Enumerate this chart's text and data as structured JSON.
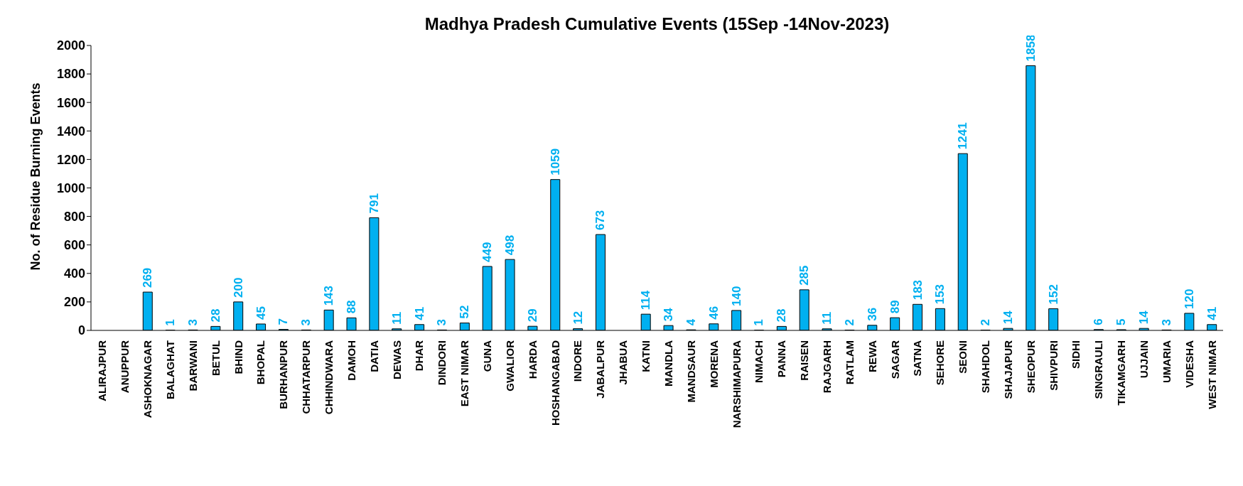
{
  "chart_data": {
    "type": "bar",
    "title": "Madhya Pradesh Cumulative Events (15Sep -14Nov-2023)",
    "ylabel": "No. of Residue Burning Events",
    "categories": [
      "ALIRAJPUR",
      "ANUPPUR",
      "ASHOKNAGAR",
      "BALAGHAT",
      "BARWANI",
      "BETUL",
      "BHIND",
      "BHOPAL",
      "BURHANPUR",
      "CHHATARPUR",
      "CHHINDWARA",
      "DAMOH",
      "DATIA",
      "DEWAS",
      "DHAR",
      "DINDORI",
      "EAST NIMAR",
      "GUNA",
      "GWALIOR",
      "HARDA",
      "HOSHANGABAD",
      "INDORE",
      "JABALPUR",
      "JHABUA",
      "KATNI",
      "MANDLA",
      "MANDSAUR",
      "MORENA",
      "NARSHIMAPURA",
      "NIMACH",
      "PANNA",
      "RAISEN",
      "RAJGARH",
      "RATLAM",
      "REWA",
      "SAGAR",
      "SATNA",
      "SEHORE",
      "SEONI",
      "SHAHDOL",
      "SHAJAPUR",
      "SHEOPUR",
      "SHIVPURI",
      "SIDHI",
      "SINGRAULI",
      "TIKAMGARH",
      "UJJAIN",
      "UMARIA",
      "VIDESHA",
      "WEST NIMAR"
    ],
    "values": [
      0,
      0,
      269,
      1,
      3,
      28,
      200,
      45,
      7,
      3,
      143,
      88,
      791,
      11,
      41,
      3,
      52,
      449,
      498,
      29,
      1059,
      12,
      673,
      0,
      114,
      34,
      4,
      46,
      140,
      1,
      28,
      285,
      11,
      2,
      36,
      89,
      183,
      153,
      1241,
      2,
      14,
      1858,
      152,
      0,
      6,
      5,
      14,
      3,
      120,
      41
    ],
    "value_labels": [
      null,
      null,
      "269",
      "1",
      "3",
      "28",
      "200",
      "45",
      "7",
      "3",
      "143",
      "88",
      "791",
      "11",
      "41",
      "3",
      "52",
      "449",
      "498",
      "29",
      "1059",
      "12",
      "673",
      null,
      "114",
      "34",
      "4",
      "46",
      "140",
      "1",
      "28",
      "285",
      "11",
      "2",
      "36",
      "89",
      "183",
      "153",
      "1241",
      "2",
      "14",
      "1858",
      "152",
      null,
      "6",
      "5",
      "14",
      "3",
      "120",
      "41"
    ],
    "color": "#00b0f0",
    "ylim": [
      0,
      2000
    ],
    "yticks": [
      0,
      200,
      400,
      600,
      800,
      1000,
      1200,
      1400,
      1600,
      1800,
      2000
    ],
    "grid": false,
    "legend": false
  }
}
